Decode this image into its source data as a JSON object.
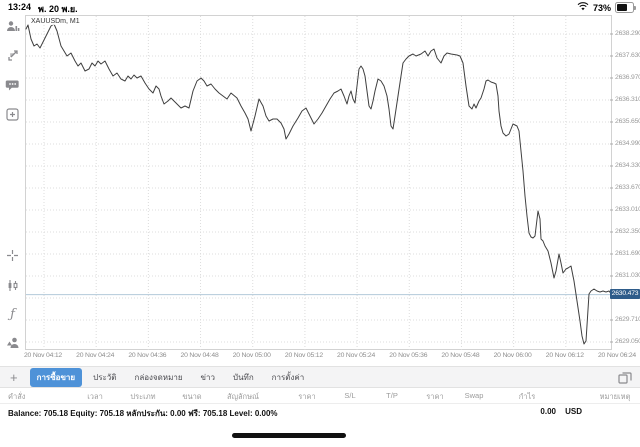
{
  "status_bar": {
    "time": "13:24",
    "date": "พ. 20 พ.ย.",
    "battery_percent": "73%"
  },
  "sidebar": {
    "icons_top": [
      "account-icon",
      "trade-arrow-icon",
      "chat-icon",
      "new-chart-icon"
    ],
    "icons_bottom": [
      "crosshair-icon",
      "candlestick-icon",
      "indicators-icon",
      "objects-icon"
    ],
    "timeframe_label": "M1"
  },
  "chart": {
    "symbol_label": "XAUUSDm, M1",
    "current_price_label": "2630.473"
  },
  "chart_data": {
    "type": "line",
    "title": "XAUUSDm, M1",
    "symbol": "XAUUSDm",
    "timeframe": "M1",
    "current_price": 2630.473,
    "line_color": "#3f3f3f",
    "grid_on": true,
    "y_axis": {
      "price_at_top": 2638.83,
      "price_at_bottom": 2628.78
    },
    "y_tick_labels": [
      "2638.290",
      "2637.630",
      "2636.970",
      "2636.310",
      "2635.650",
      "2634.990",
      "2634.330",
      "2633.670",
      "2633.010",
      "2632.350",
      "2631.690",
      "2631.030",
      "2630.370",
      "2629.710",
      "2629.050"
    ],
    "x_tick_labels": [
      "20 Nov 04:12",
      "20 Nov 04:24",
      "20 Nov 04:36",
      "20 Nov 04:48",
      "20 Nov 05:00",
      "20 Nov 05:12",
      "20 Nov 05:24",
      "20 Nov 05:36",
      "20 Nov 05:48",
      "20 Nov 06:00",
      "20 Nov 06:12",
      "20 Nov 06:24"
    ],
    "points": [
      [
        25,
        2638.44
      ],
      [
        27,
        2638.56
      ],
      [
        30,
        2638.14
      ],
      [
        33,
        2637.93
      ],
      [
        36,
        2637.99
      ],
      [
        39,
        2637.87
      ],
      [
        45,
        2638.23
      ],
      [
        50,
        2638.53
      ],
      [
        53,
        2638.59
      ],
      [
        56,
        2638.38
      ],
      [
        60,
        2637.93
      ],
      [
        66,
        2637.63
      ],
      [
        70,
        2637.72
      ],
      [
        74,
        2637.48
      ],
      [
        77,
        2637.33
      ],
      [
        80,
        2637.42
      ],
      [
        84,
        2637.18
      ],
      [
        88,
        2637.24
      ],
      [
        91,
        2637.42
      ],
      [
        94,
        2637.33
      ],
      [
        97,
        2637.48
      ],
      [
        100,
        2637.39
      ],
      [
        104,
        2637.48
      ],
      [
        108,
        2637.24
      ],
      [
        112,
        2637.03
      ],
      [
        116,
        2637.12
      ],
      [
        120,
        2636.94
      ],
      [
        124,
        2636.88
      ],
      [
        127,
        2637.03
      ],
      [
        130,
        2636.94
      ],
      [
        133,
        2637.06
      ],
      [
        136,
        2636.97
      ],
      [
        140,
        2637.03
      ],
      [
        144,
        2636.82
      ],
      [
        148,
        2636.64
      ],
      [
        152,
        2636.52
      ],
      [
        155,
        2636.73
      ],
      [
        158,
        2636.64
      ],
      [
        160,
        2636.43
      ],
      [
        163,
        2636.19
      ],
      [
        167,
        2636.28
      ],
      [
        170,
        2636.37
      ],
      [
        173,
        2636.28
      ],
      [
        176,
        2636.19
      ],
      [
        180,
        2636.07
      ],
      [
        184,
        2636.13
      ],
      [
        188,
        2636.07
      ],
      [
        192,
        2636.58
      ],
      [
        196,
        2636.88
      ],
      [
        200,
        2636.97
      ],
      [
        203,
        2636.88
      ],
      [
        206,
        2636.73
      ],
      [
        210,
        2636.79
      ],
      [
        214,
        2636.64
      ],
      [
        218,
        2636.52
      ],
      [
        222,
        2636.43
      ],
      [
        226,
        2636.34
      ],
      [
        230,
        2636.52
      ],
      [
        236,
        2636.37
      ],
      [
        240,
        2636.13
      ],
      [
        244,
        2635.92
      ],
      [
        247,
        2635.74
      ],
      [
        250,
        2635.38
      ],
      [
        254,
        2635.83
      ],
      [
        258,
        2636.34
      ],
      [
        262,
        2636.13
      ],
      [
        265,
        2635.83
      ],
      [
        268,
        2635.68
      ],
      [
        272,
        2635.74
      ],
      [
        276,
        2635.74
      ],
      [
        280,
        2635.62
      ],
      [
        283,
        2635.44
      ],
      [
        285,
        2635.14
      ],
      [
        288,
        2635.29
      ],
      [
        292,
        2635.53
      ],
      [
        297,
        2635.77
      ],
      [
        301,
        2635.98
      ],
      [
        305,
        2636.07
      ],
      [
        309,
        2635.83
      ],
      [
        313,
        2635.59
      ],
      [
        317,
        2635.74
      ],
      [
        321,
        2635.92
      ],
      [
        325,
        2636.13
      ],
      [
        329,
        2636.34
      ],
      [
        333,
        2636.52
      ],
      [
        337,
        2636.58
      ],
      [
        340,
        2636.64
      ],
      [
        343,
        2636.43
      ],
      [
        346,
        2636.19
      ],
      [
        348,
        2636.43
      ],
      [
        350,
        2636.58
      ],
      [
        352,
        2636.34
      ],
      [
        354,
        2636.22
      ],
      [
        356,
        2636.73
      ],
      [
        358,
        2637.24
      ],
      [
        360,
        2637.33
      ],
      [
        362,
        2637.24
      ],
      [
        364,
        2637.03
      ],
      [
        366,
        2636.58
      ],
      [
        368,
        2636.13
      ],
      [
        370,
        2636.04
      ],
      [
        372,
        2636.28
      ],
      [
        374,
        2636.58
      ],
      [
        377,
        2636.94
      ],
      [
        380,
        2636.88
      ],
      [
        383,
        2636.73
      ],
      [
        386,
        2636.43
      ],
      [
        388,
        2636.04
      ],
      [
        390,
        2635.53
      ],
      [
        392,
        2635.44
      ],
      [
        394,
        2635.83
      ],
      [
        397,
        2636.43
      ],
      [
        400,
        2637.03
      ],
      [
        402,
        2637.42
      ],
      [
        405,
        2637.54
      ],
      [
        408,
        2637.63
      ],
      [
        412,
        2637.69
      ],
      [
        415,
        2637.63
      ],
      [
        420,
        2637.69
      ],
      [
        424,
        2637.78
      ],
      [
        427,
        2637.63
      ],
      [
        430,
        2637.78
      ],
      [
        433,
        2637.84
      ],
      [
        436,
        2637.57
      ],
      [
        440,
        2637.42
      ],
      [
        443,
        2637.63
      ],
      [
        446,
        2637.72
      ],
      [
        450,
        2637.69
      ],
      [
        456,
        2637.66
      ],
      [
        459,
        2637.63
      ],
      [
        462,
        2637.42
      ],
      [
        465,
        2636.73
      ],
      [
        468,
        2636.13
      ],
      [
        471,
        2636.04
      ],
      [
        473,
        2636.19
      ],
      [
        475,
        2636.07
      ],
      [
        478,
        2636.28
      ],
      [
        480,
        2636.37
      ],
      [
        483,
        2636.64
      ],
      [
        485,
        2636.88
      ],
      [
        487,
        2636.91
      ],
      [
        490,
        2636.85
      ],
      [
        493,
        2636.82
      ],
      [
        495,
        2636.79
      ],
      [
        497,
        2636.43
      ],
      [
        498,
        2635.98
      ],
      [
        500,
        2635.53
      ],
      [
        502,
        2635.32
      ],
      [
        505,
        2635.23
      ],
      [
        508,
        2635.29
      ],
      [
        510,
        2635.44
      ],
      [
        512,
        2635.59
      ],
      [
        514,
        2635.56
      ],
      [
        516,
        2635.53
      ],
      [
        518,
        2635.38
      ],
      [
        520,
        2634.78
      ],
      [
        522,
        2634.18
      ],
      [
        524,
        2633.43
      ],
      [
        526,
        2632.83
      ],
      [
        528,
        2632.32
      ],
      [
        530,
        2632.2
      ],
      [
        532,
        2632.17
      ],
      [
        534,
        2632.23
      ],
      [
        537,
        2632.98
      ],
      [
        539,
        2632.74
      ],
      [
        540,
        2632.14
      ],
      [
        542,
        2632.08
      ],
      [
        544,
        2631.93
      ],
      [
        547,
        2631.78
      ],
      [
        550,
        2631.42
      ],
      [
        553,
        2630.97
      ],
      [
        555,
        2631.18
      ],
      [
        558,
        2631.69
      ],
      [
        560,
        2631.42
      ],
      [
        562,
        2631.12
      ],
      [
        565,
        2631.24
      ],
      [
        567,
        2631.27
      ],
      [
        570,
        2631.33
      ],
      [
        573,
        2630.88
      ],
      [
        576,
        2630.28
      ],
      [
        579,
        2629.68
      ],
      [
        581,
        2629.23
      ],
      [
        583,
        2628.99
      ],
      [
        585,
        2629.08
      ],
      [
        588,
        2630.49
      ],
      [
        590,
        2630.58
      ],
      [
        593,
        2630.64
      ],
      [
        596,
        2630.58
      ],
      [
        599,
        2630.55
      ],
      [
        602,
        2630.58
      ],
      [
        605,
        2630.55
      ],
      [
        608,
        2630.58
      ],
      [
        611,
        2630.47
      ]
    ]
  },
  "tab_bar": {
    "add_label": "+",
    "tabs": [
      {
        "label": "การซื้อขาย",
        "selected": true
      },
      {
        "label": "ประวัติ",
        "selected": false
      },
      {
        "label": "กล่องจดหมาย",
        "selected": false
      },
      {
        "label": "ข่าว",
        "selected": false
      },
      {
        "label": "บันทึก",
        "selected": false
      },
      {
        "label": "การตั้งค่า",
        "selected": false
      }
    ]
  },
  "table": {
    "columns": [
      "คำสั่ง",
      "เวลา",
      "ประเภท",
      "ขนาด",
      "สัญลักษณ์",
      "ราคา",
      "S/L",
      "T/P",
      "ราคา",
      "Swap",
      "กำไร",
      "หมายเหตุ"
    ]
  },
  "footer": {
    "summary": "Balance: 705.18 Equity: 705.18 หลักประกัน: 0.00 ฟรี: 705.18 Level: 0.00%",
    "profit": "0.00",
    "currency": "USD"
  },
  "colors": {
    "accent": "#4e92d8",
    "price_tag": "#2e5c8a",
    "line": "#3f3f3f",
    "grid": "#dcdcdc",
    "current_price_line": "#b3c9da"
  }
}
